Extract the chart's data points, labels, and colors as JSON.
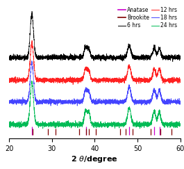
{
  "xlabel": "2 θ/ degree",
  "xlim": [
    20,
    60
  ],
  "background_color": "#ffffff",
  "anatase_peaks": [
    25.3,
    38.0,
    48.0,
    53.9,
    55.1
  ],
  "brookite_peaks": [
    25.5,
    29.0,
    30.8,
    36.4,
    37.9,
    38.6,
    40.2,
    46.0,
    47.2,
    48.9,
    53.1,
    55.3,
    57.9
  ],
  "sample_colors": [
    "#000000",
    "#ff2020",
    "#4444ff",
    "#00bb55"
  ],
  "sample_labels": [
    "6 hrs",
    "12 hrs",
    "18 hrs",
    "24 hrs"
  ],
  "offsets": [
    3.2,
    2.15,
    1.15,
    0.1
  ],
  "noise_scale": 0.055,
  "seed": 17,
  "peak_positions": [
    25.3,
    37.85,
    38.6,
    48.05,
    53.9,
    55.1
  ],
  "peak_widths": [
    0.38,
    0.32,
    0.32,
    0.38,
    0.35,
    0.32
  ],
  "peak_heights_6h": [
    2.0,
    0.45,
    0.38,
    0.55,
    0.42,
    0.42
  ],
  "peak_heights_12h": [
    1.75,
    0.52,
    0.45,
    0.65,
    0.52,
    0.52
  ],
  "peak_heights_18h": [
    1.8,
    0.55,
    0.48,
    0.7,
    0.55,
    0.55
  ],
  "peak_heights_24h": [
    1.95,
    0.62,
    0.55,
    0.78,
    0.62,
    0.62
  ]
}
